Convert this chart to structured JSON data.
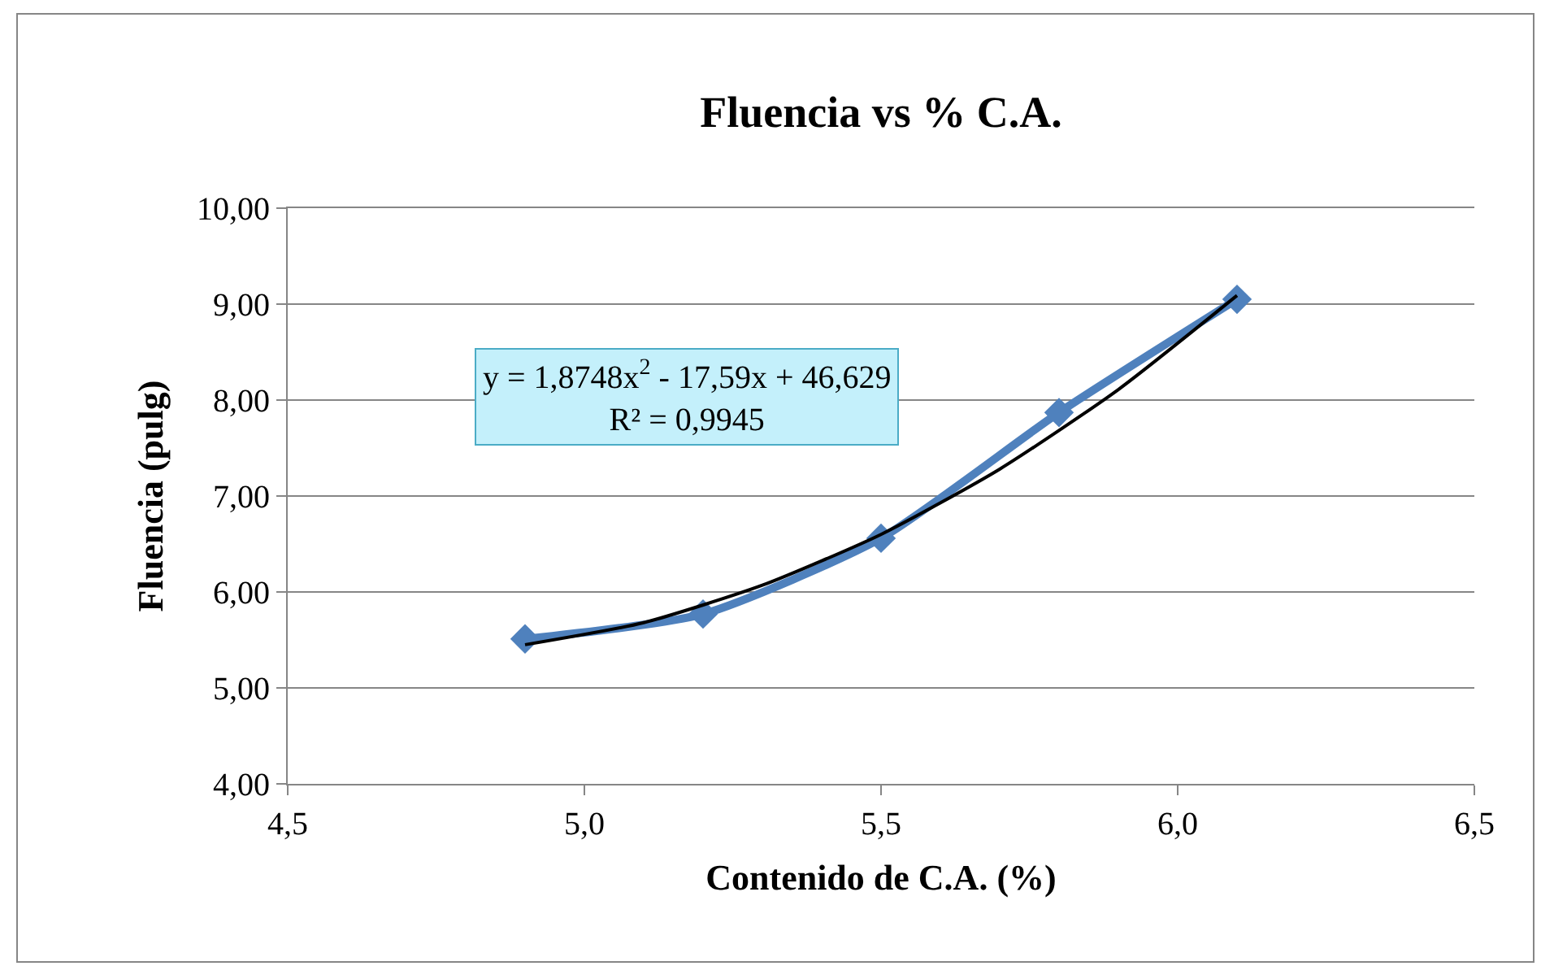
{
  "chart_data": {
    "type": "line",
    "title": "Fluencia vs % C.A.",
    "xlabel": "Contenido de C.A. (%)",
    "ylabel": "Fluencia (pulg)",
    "x": [
      4.9,
      5.2,
      5.5,
      5.8,
      6.1
    ],
    "series": [
      {
        "color": "#4f81bd",
        "values": [
          5.51,
          5.77,
          6.56,
          7.87,
          9.05
        ],
        "marker": "diamond",
        "line_style": "solid"
      },
      {
        "type": "line",
        "color": "#000000",
        "x": [
          4.9,
          5.1,
          5.3,
          5.5,
          5.7,
          5.9,
          6.1
        ],
        "values": [
          5.45,
          5.68,
          6.07,
          6.6,
          7.28,
          8.11,
          9.09
        ],
        "marker": "none",
        "line_style": "solid"
      }
    ],
    "xlim": [
      4.5,
      6.5
    ],
    "xticks": [
      {
        "value": 4.5,
        "label": "4,5"
      },
      {
        "value": 5,
        "label": "5,0"
      },
      {
        "value": 5.5,
        "label": "5,5"
      },
      {
        "value": 6,
        "label": "6,0"
      },
      {
        "value": 6.5,
        "label": "6,5"
      }
    ],
    "ylim": [
      4,
      10
    ],
    "yticks": [
      {
        "value": 4,
        "label": "4,00"
      },
      {
        "value": 5,
        "label": "5,00"
      },
      {
        "value": 6,
        "label": "6,00"
      },
      {
        "value": 7,
        "label": "7,00"
      },
      {
        "value": 8,
        "label": "8,00"
      },
      {
        "value": 9,
        "label": "9,00"
      },
      {
        "value": 10,
        "label": "10,00"
      }
    ],
    "grid": "y",
    "annotations": [
      "y = 1,8748x$^{2}$ - 17,59x + 46,629\nR² = 0,9945"
    ]
  }
}
